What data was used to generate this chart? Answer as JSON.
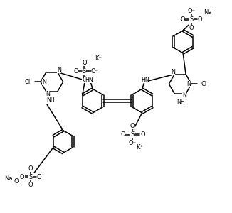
{
  "bg": "#ffffff",
  "lc": "black",
  "lw": 1.1,
  "figsize": [
    3.26,
    3.0
  ],
  "dpi": 100,
  "xlim": [
    0,
    326
  ],
  "ylim": [
    0,
    300
  ]
}
